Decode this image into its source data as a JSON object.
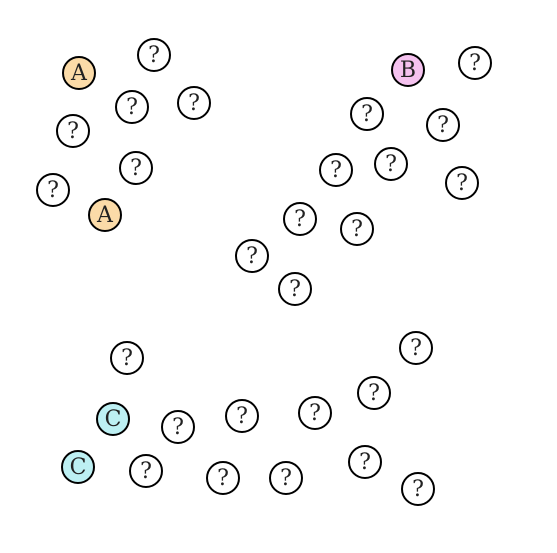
{
  "board": {
    "hidden_symbol": "?",
    "colors": {
      "hidden": "#ffffff",
      "A": "#fbdba8",
      "B": "#f5c2ef",
      "C": "#bdf0f3"
    },
    "cards": [
      {
        "state": "revealed",
        "label": "A"
      },
      {
        "state": "hidden",
        "label": "?"
      },
      {
        "state": "hidden",
        "label": "?"
      },
      {
        "state": "hidden",
        "label": "?"
      },
      {
        "state": "hidden",
        "label": "?"
      },
      {
        "state": "hidden",
        "label": "?"
      },
      {
        "state": "hidden",
        "label": "?"
      },
      {
        "state": "revealed",
        "label": "A"
      },
      {
        "state": "revealed",
        "label": "B"
      },
      {
        "state": "hidden",
        "label": "?"
      },
      {
        "state": "hidden",
        "label": "?"
      },
      {
        "state": "hidden",
        "label": "?"
      },
      {
        "state": "hidden",
        "label": "?"
      },
      {
        "state": "hidden",
        "label": "?"
      },
      {
        "state": "hidden",
        "label": "?"
      },
      {
        "state": "hidden",
        "label": "?"
      },
      {
        "state": "hidden",
        "label": "?"
      },
      {
        "state": "hidden",
        "label": "?"
      },
      {
        "state": "hidden",
        "label": "?"
      },
      {
        "state": "hidden",
        "label": "?"
      },
      {
        "state": "hidden",
        "label": "?"
      },
      {
        "state": "revealed",
        "label": "C"
      },
      {
        "state": "hidden",
        "label": "?"
      },
      {
        "state": "hidden",
        "label": "?"
      },
      {
        "state": "hidden",
        "label": "?"
      },
      {
        "state": "hidden",
        "label": "?"
      },
      {
        "state": "revealed",
        "label": "C"
      },
      {
        "state": "hidden",
        "label": "?"
      },
      {
        "state": "hidden",
        "label": "?"
      },
      {
        "state": "hidden",
        "label": "?"
      },
      {
        "state": "hidden",
        "label": "?"
      },
      {
        "state": "hidden",
        "label": "?"
      }
    ]
  }
}
